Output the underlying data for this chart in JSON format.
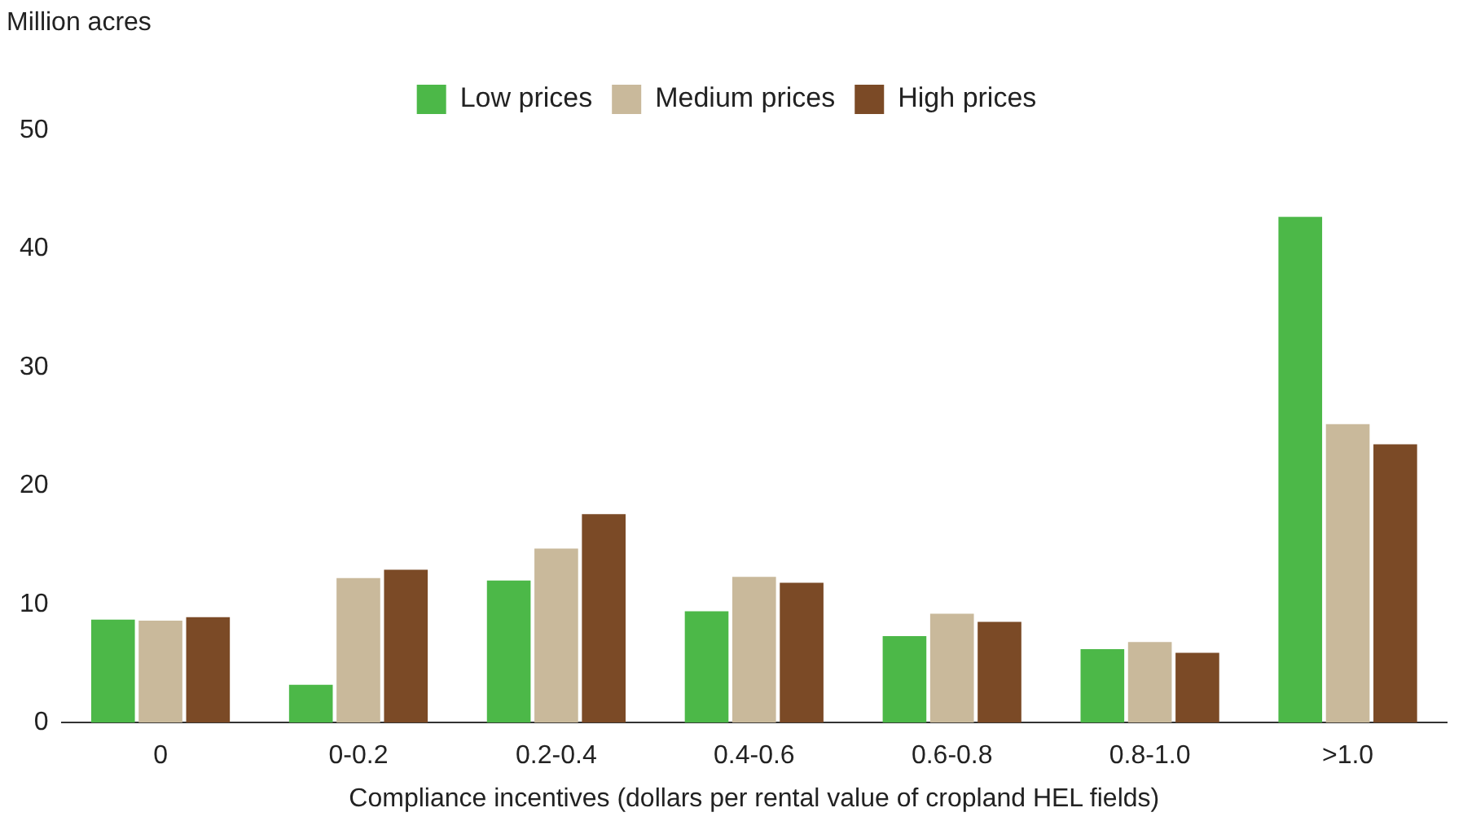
{
  "chart_data": {
    "type": "bar",
    "ylabel": "Million acres",
    "xlabel": "Compliance incentives (dollars per rental value of cropland HEL fields)",
    "categories": [
      "0",
      "0-0.2",
      "0.2-0.4",
      "0.4-0.6",
      "0.6-0.8",
      "0.8-1.0",
      ">1.0"
    ],
    "series": [
      {
        "name": "Low prices",
        "color": "#4cb848",
        "values": [
          8.7,
          3.2,
          12.0,
          9.4,
          7.3,
          6.2,
          42.7
        ]
      },
      {
        "name": "Medium prices",
        "color": "#c9b99b",
        "values": [
          8.6,
          12.2,
          14.7,
          12.3,
          9.2,
          6.8,
          25.2
        ]
      },
      {
        "name": "High prices",
        "color": "#7b4a26",
        "values": [
          8.9,
          12.9,
          17.6,
          11.8,
          8.5,
          5.9,
          23.5
        ]
      }
    ],
    "ylim": [
      0,
      50
    ],
    "yticks": [
      0,
      10,
      20,
      30,
      40,
      50
    ],
    "grid": false,
    "legend": "top"
  }
}
